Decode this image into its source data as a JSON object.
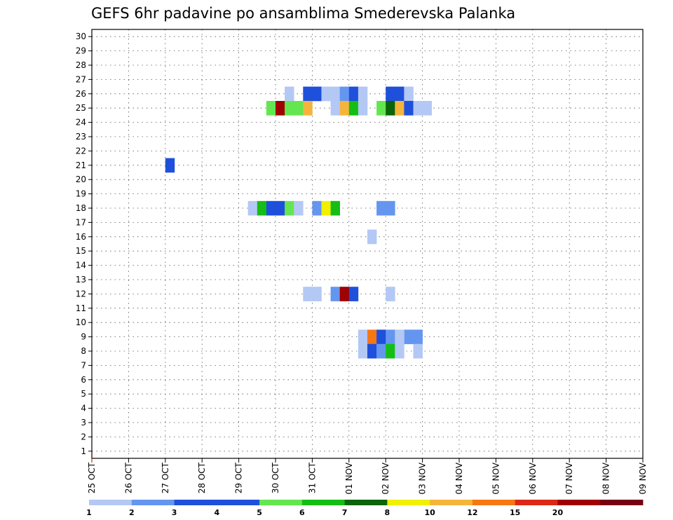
{
  "chart_data": {
    "type": "heatmap",
    "title": "GEFS 6hr padavine po ansamblima Smederevska Palanka",
    "xlabel": "",
    "ylabel": "",
    "x_tick_labels": [
      "25 OCT",
      "26 OCT",
      "27 OCT",
      "28 OCT",
      "29 OCT",
      "30 OCT",
      "31 OCT",
      "01 NOV",
      "02 NOV",
      "03 NOV",
      "04 NOV",
      "05 NOV",
      "06 NOV",
      "07 NOV",
      "08 NOV",
      "09 NOV"
    ],
    "xlim_days": [
      0,
      15
    ],
    "y_ticks": [
      1,
      2,
      3,
      4,
      5,
      6,
      7,
      8,
      9,
      10,
      11,
      12,
      13,
      14,
      15,
      16,
      17,
      18,
      19,
      20,
      21,
      22,
      23,
      24,
      25,
      26,
      27,
      28,
      29,
      30
    ],
    "ylim": [
      0.5,
      30.5
    ],
    "grid": true,
    "time_step_hours": 6,
    "legend": {
      "placement": "bottom",
      "colors": [
        "#b4c8f5",
        "#6496f0",
        "#1e50dc",
        "#1e50dc",
        "#64e650",
        "#14be14",
        "#0a640a",
        "#f0f000",
        "#f5b43c",
        "#f57814",
        "#dc2814",
        "#a00000",
        "#780014"
      ],
      "labels": [
        "1",
        "2",
        "3",
        "4",
        "5",
        "6",
        "7",
        "8",
        "10",
        "12",
        "15",
        "20"
      ]
    },
    "cells": [
      {
        "member": 26,
        "step": 21,
        "color": "#b4c8f5"
      },
      {
        "member": 26,
        "step": 23,
        "color": "#1e50dc"
      },
      {
        "member": 26,
        "step": 24,
        "color": "#1e50dc"
      },
      {
        "member": 26,
        "step": 25,
        "color": "#b4c8f5"
      },
      {
        "member": 26,
        "step": 26,
        "color": "#b4c8f5"
      },
      {
        "member": 26,
        "step": 27,
        "color": "#6496f0"
      },
      {
        "member": 26,
        "step": 28,
        "color": "#1e50dc"
      },
      {
        "member": 26,
        "step": 29,
        "color": "#b4c8f5"
      },
      {
        "member": 26,
        "step": 32,
        "color": "#1e50dc"
      },
      {
        "member": 26,
        "step": 33,
        "color": "#1e50dc"
      },
      {
        "member": 26,
        "step": 34,
        "color": "#b4c8f5"
      },
      {
        "member": 25,
        "step": 19,
        "color": "#64e650"
      },
      {
        "member": 25,
        "step": 20,
        "color": "#a00000"
      },
      {
        "member": 25,
        "step": 21,
        "color": "#64e650"
      },
      {
        "member": 25,
        "step": 22,
        "color": "#64e650"
      },
      {
        "member": 25,
        "step": 23,
        "color": "#f5b43c"
      },
      {
        "member": 25,
        "step": 26,
        "color": "#b4c8f5"
      },
      {
        "member": 25,
        "step": 27,
        "color": "#f5b43c"
      },
      {
        "member": 25,
        "step": 28,
        "color": "#14be14"
      },
      {
        "member": 25,
        "step": 29,
        "color": "#b4c8f5"
      },
      {
        "member": 25,
        "step": 31,
        "color": "#64e650"
      },
      {
        "member": 25,
        "step": 32,
        "color": "#0a640a"
      },
      {
        "member": 25,
        "step": 33,
        "color": "#f5b43c"
      },
      {
        "member": 25,
        "step": 34,
        "color": "#1e50dc"
      },
      {
        "member": 25,
        "step": 35,
        "color": "#b4c8f5"
      },
      {
        "member": 25,
        "step": 36,
        "color": "#b4c8f5"
      },
      {
        "member": 21,
        "step": 8,
        "color": "#1e50dc"
      },
      {
        "member": 18,
        "step": 17,
        "color": "#b4c8f5"
      },
      {
        "member": 18,
        "step": 18,
        "color": "#14be14"
      },
      {
        "member": 18,
        "step": 19,
        "color": "#1e50dc"
      },
      {
        "member": 18,
        "step": 20,
        "color": "#1e50dc"
      },
      {
        "member": 18,
        "step": 21,
        "color": "#64e650"
      },
      {
        "member": 18,
        "step": 22,
        "color": "#b4c8f5"
      },
      {
        "member": 18,
        "step": 24,
        "color": "#6496f0"
      },
      {
        "member": 18,
        "step": 25,
        "color": "#f0f000"
      },
      {
        "member": 18,
        "step": 26,
        "color": "#14be14"
      },
      {
        "member": 18,
        "step": 31,
        "color": "#6496f0"
      },
      {
        "member": 18,
        "step": 32,
        "color": "#6496f0"
      },
      {
        "member": 16,
        "step": 30,
        "color": "#b4c8f5"
      },
      {
        "member": 12,
        "step": 23,
        "color": "#b4c8f5"
      },
      {
        "member": 12,
        "step": 24,
        "color": "#b4c8f5"
      },
      {
        "member": 12,
        "step": 26,
        "color": "#6496f0"
      },
      {
        "member": 12,
        "step": 27,
        "color": "#a00000"
      },
      {
        "member": 12,
        "step": 28,
        "color": "#1e50dc"
      },
      {
        "member": 12,
        "step": 32,
        "color": "#b4c8f5"
      },
      {
        "member": 9,
        "step": 29,
        "color": "#b4c8f5"
      },
      {
        "member": 9,
        "step": 30,
        "color": "#f57814"
      },
      {
        "member": 9,
        "step": 31,
        "color": "#1e50dc"
      },
      {
        "member": 9,
        "step": 32,
        "color": "#6496f0"
      },
      {
        "member": 9,
        "step": 34,
        "color": "#6496f0"
      },
      {
        "member": 9,
        "step": 35,
        "color": "#6496f0"
      },
      {
        "member": 9,
        "step": 33,
        "color": "#b4c8f5"
      },
      {
        "member": 8,
        "step": 29,
        "color": "#b4c8f5"
      },
      {
        "member": 8,
        "step": 30,
        "color": "#1e50dc"
      },
      {
        "member": 8,
        "step": 31,
        "color": "#6496f0"
      },
      {
        "member": 8,
        "step": 32,
        "color": "#14be14"
      },
      {
        "member": 8,
        "step": 33,
        "color": "#b4c8f5"
      },
      {
        "member": 8,
        "step": 35,
        "color": "#b4c8f5"
      }
    ]
  }
}
